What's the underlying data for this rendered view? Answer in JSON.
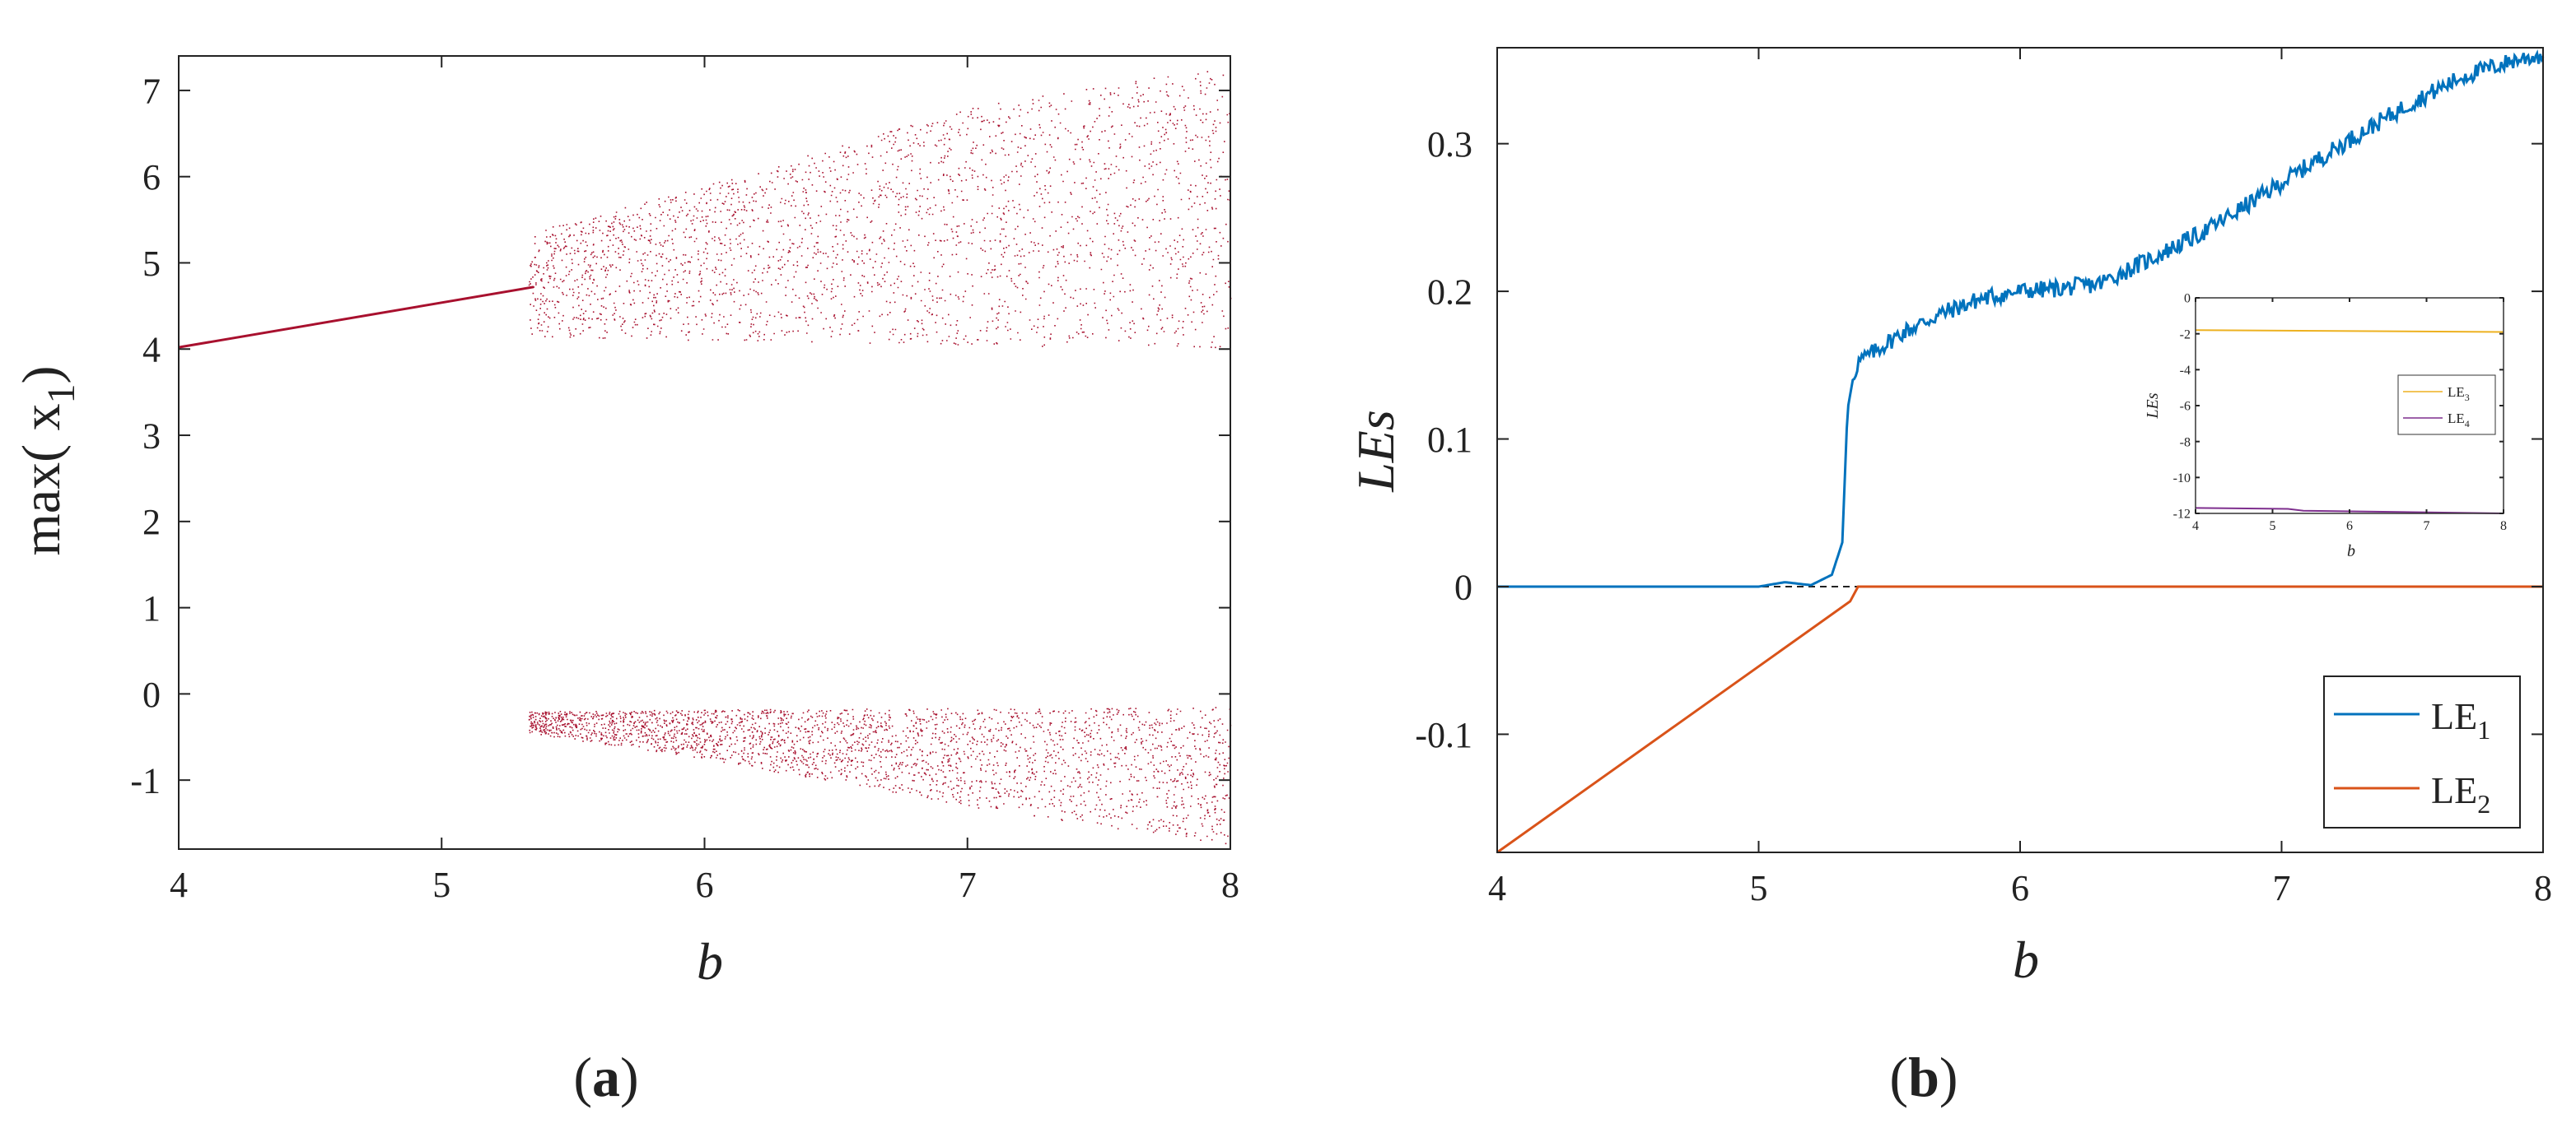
{
  "chart_data": [
    {
      "panel_label": "a",
      "type": "scatter",
      "xlabel": "b",
      "ylabel": "max( x",
      "ylabel_sub": "1",
      "ylabel_close": ")",
      "xlim": [
        4,
        8
      ],
      "ylim": [
        -1.8,
        7.4
      ],
      "xticks": [
        "4",
        "5",
        "6",
        "7",
        "8"
      ],
      "yticks": [
        "-1",
        "0",
        "1",
        "2",
        "3",
        "4",
        "5",
        "6",
        "7"
      ],
      "grid": false,
      "color": "#A8102E",
      "series": [
        {
          "kind": "line",
          "x": [
            4.0,
            5.35
          ],
          "y": [
            4.02,
            4.72
          ]
        },
        {
          "kind": "band",
          "x": [
            5.33,
            6.0,
            7.0,
            8.0
          ],
          "lower": [
            4.15,
            4.1,
            4.05,
            4.0
          ],
          "upper": [
            5.35,
            5.9,
            6.8,
            7.3
          ]
        },
        {
          "kind": "band",
          "x": [
            5.33,
            6.0,
            7.0,
            8.0
          ],
          "lower": [
            -0.45,
            -0.75,
            -1.3,
            -1.75
          ],
          "upper": [
            -0.2,
            -0.18,
            -0.16,
            -0.15
          ]
        }
      ]
    },
    {
      "panel_label": "b",
      "type": "line",
      "xlabel": "b",
      "ylabel": "LEs",
      "xlim": [
        4,
        8
      ],
      "ylim": [
        -0.18,
        0.365
      ],
      "xticks": [
        "4",
        "5",
        "6",
        "7",
        "8"
      ],
      "yticks": [
        "-0.1",
        "0",
        "0.1",
        "0.2",
        "0.3"
      ],
      "grid": false,
      "legend_position": "bottom-right",
      "series": [
        {
          "name": "LE",
          "sub": "1",
          "color": "#0072BD",
          "x": [
            4.0,
            5.0,
            5.1,
            5.2,
            5.28,
            5.32,
            5.34,
            5.36,
            5.38,
            5.45,
            5.55,
            5.7,
            5.85,
            6.0,
            6.15,
            6.3,
            6.5,
            6.7,
            6.9,
            7.1,
            7.3,
            7.5,
            7.7,
            7.9,
            8.0
          ],
          "y": [
            0.0,
            0.0,
            0.003,
            0.001,
            0.008,
            0.03,
            0.12,
            0.14,
            0.152,
            0.16,
            0.172,
            0.185,
            0.195,
            0.2,
            0.202,
            0.205,
            0.222,
            0.24,
            0.262,
            0.285,
            0.307,
            0.328,
            0.346,
            0.357,
            0.36
          ]
        },
        {
          "name": "LE",
          "sub": "2",
          "color": "#D95319",
          "x": [
            4.0,
            5.35,
            5.38,
            8.0
          ],
          "y": [
            -0.18,
            -0.01,
            0.0,
            0.0
          ]
        }
      ]
    },
    {
      "panel_label": "",
      "type": "line",
      "role": "inset",
      "xlabel": "b",
      "ylabel": "LEs",
      "xlim": [
        4,
        8
      ],
      "ylim": [
        -12,
        0
      ],
      "xticks": [
        "4",
        "5",
        "6",
        "7",
        "8"
      ],
      "yticks": [
        "-12",
        "-10",
        "-8",
        "-6",
        "-4",
        "-2",
        "0"
      ],
      "legend_position": "center-right",
      "series": [
        {
          "name": "LE",
          "sub": "3",
          "color": "#EDB120",
          "x": [
            4,
            8
          ],
          "y": [
            -1.8,
            -1.9
          ]
        },
        {
          "name": "LE",
          "sub": "4",
          "color": "#7E2F8E",
          "x": [
            4,
            5.2,
            5.4,
            8
          ],
          "y": [
            -11.7,
            -11.75,
            -11.85,
            -12.0
          ]
        }
      ]
    }
  ]
}
